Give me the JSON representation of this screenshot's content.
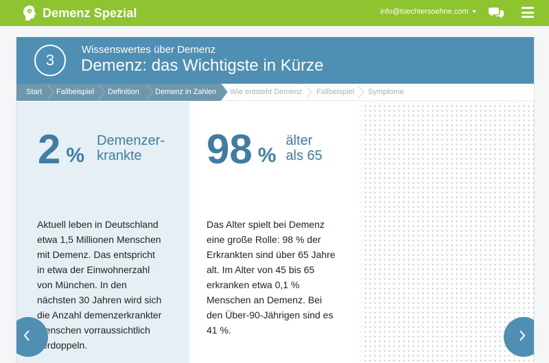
{
  "topbar": {
    "brand": "Demenz Spezial",
    "email": "info@toechtersoehne.com"
  },
  "header": {
    "number": "3",
    "subtitle": "Wissenswertes über Demenz",
    "title": "Demenz: das Wichtigste in Kürze"
  },
  "breadcrumb": [
    {
      "label": "Start",
      "state": "done"
    },
    {
      "label": "Fallbeispiel",
      "state": "done"
    },
    {
      "label": "Definition",
      "state": "done"
    },
    {
      "label": "Demenz in Zahlen",
      "state": "current"
    },
    {
      "label": "Wie entsteht Demenz",
      "state": "todo"
    },
    {
      "label": "Fallbeispiel",
      "state": "todo"
    },
    {
      "label": "Symptome",
      "state": "todo"
    }
  ],
  "stat1": {
    "value": "2",
    "unit": "%",
    "label_line1": "Demenzer-",
    "label_line2": "krankte",
    "text": [
      "Aktuell leben in Deutschland",
      "etwa 1,5 Millionen Menschen",
      "mit Demenz. Das entspricht",
      "in etwa der Einwohnerzahl",
      "von München. In den",
      "nächsten 30 Jahren wird sich",
      "die Anzahl demenzerkrankter",
      "Menschen vorraussichtlich",
      "verdoppeln."
    ]
  },
  "stat2": {
    "value": "98",
    "unit": "%",
    "label_line1": "älter",
    "label_line2": "als 65",
    "text": [
      "Das Alter spielt bei Demenz",
      "eine große Rolle: 98 % der",
      "Erkrankten sind über 65 Jahre",
      "alt. Im Alter von 45 bis 65",
      "erkranken etwa 0,1 %",
      "Menschen an Demenz. Bei",
      "den Über-90-Jährigen sind es",
      "41 %."
    ]
  },
  "icons": {
    "brand": "head-icon",
    "chat": "chat-bubbles-icon",
    "menu": "hamburger-menu-icon",
    "prev": "chevron-left-icon",
    "next": "chevron-right-icon"
  },
  "colors": {
    "topbar": "#8ec42f",
    "accent": "#4f8fb3",
    "stat": "#3f7da3",
    "crumb_done": "#6e97ad",
    "left_panel": "#e6eff4"
  }
}
